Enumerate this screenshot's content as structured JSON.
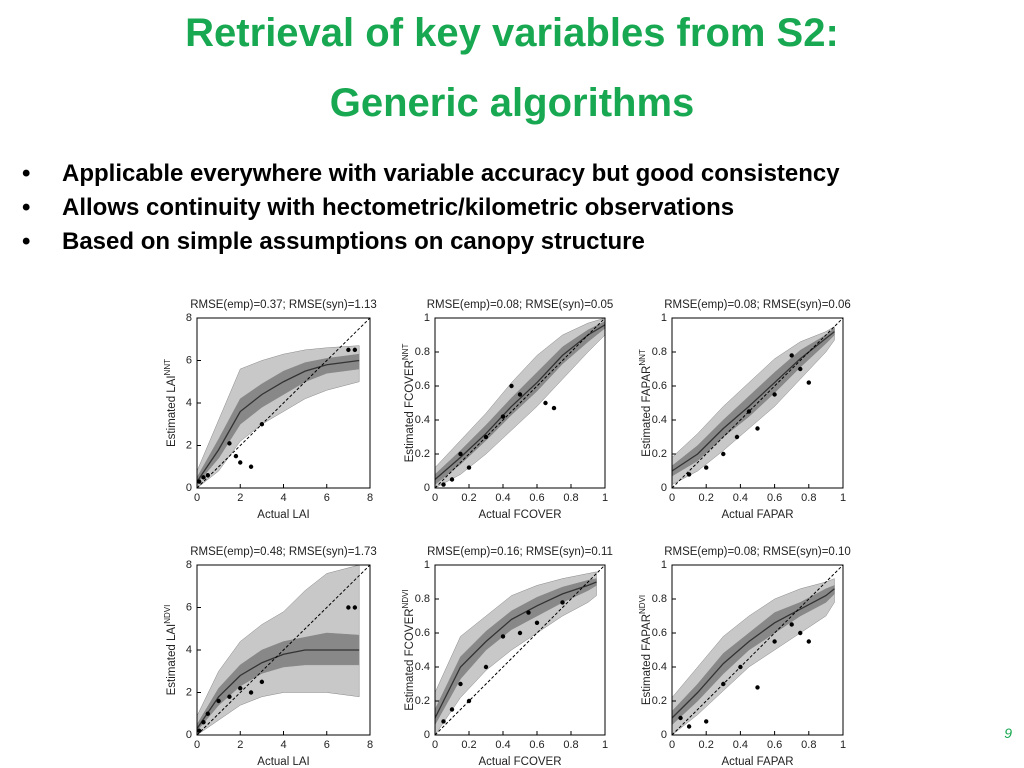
{
  "title": [
    "Retrieval of key variables from S2:",
    "Generic algorithms"
  ],
  "bullets": [
    "Applicable everywhere with variable accuracy but good consistency",
    "Allows continuity with hectometric/kilometric observations",
    "Based on simple assumptions on canopy structure"
  ],
  "page_number": "9",
  "chart_data": [
    {
      "type": "scatter",
      "title": "RMSE(emp)=0.37;  RMSE(syn)=1.13",
      "xlabel": "Actual LAI",
      "ylabel": "Estimated LAI",
      "ylabel_sup": "NNT",
      "xlim": [
        0,
        8
      ],
      "ylim": [
        0,
        8
      ],
      "xticks": [
        0,
        2,
        4,
        6,
        8
      ],
      "yticks": [
        0,
        2,
        4,
        6,
        8
      ],
      "x": [
        0,
        1,
        2,
        3,
        4,
        5,
        6,
        7.5
      ],
      "median": [
        0.3,
        1.8,
        3.6,
        4.4,
        5.0,
        5.5,
        5.8,
        6.0
      ],
      "inner_low": [
        0.2,
        1.4,
        3.0,
        3.8,
        4.4,
        5.0,
        5.4,
        5.6
      ],
      "inner_high": [
        0.5,
        2.3,
        4.2,
        4.9,
        5.5,
        5.9,
        6.1,
        6.3
      ],
      "outer_low": [
        0,
        0.8,
        2.2,
        3.0,
        3.6,
        4.2,
        4.6,
        5.0
      ],
      "outer_high": [
        0.8,
        3.2,
        5.6,
        6.0,
        6.3,
        6.5,
        6.6,
        6.7
      ],
      "points_x": [
        0.1,
        0.3,
        0.5,
        1.5,
        1.8,
        2.0,
        2.5,
        3.0,
        7.0,
        7.3
      ],
      "points_y": [
        0.3,
        0.5,
        0.6,
        2.1,
        1.5,
        1.2,
        1.0,
        3.0,
        6.5,
        6.5
      ]
    },
    {
      "type": "scatter",
      "title": "RMSE(emp)=0.08;  RMSE(syn)=0.05",
      "xlabel": "Actual FCOVER",
      "ylabel": "Estimated FCOVER",
      "ylabel_sup": "NNT",
      "xlim": [
        0,
        1
      ],
      "ylim": [
        0,
        1
      ],
      "xticks": [
        0,
        0.2,
        0.4,
        0.6,
        0.8,
        1
      ],
      "yticks": [
        0,
        0.2,
        0.4,
        0.6,
        0.8,
        1
      ],
      "x": [
        0,
        0.15,
        0.3,
        0.45,
        0.6,
        0.75,
        0.9,
        1
      ],
      "median": [
        0.05,
        0.18,
        0.32,
        0.48,
        0.62,
        0.78,
        0.9,
        0.96
      ],
      "inner_low": [
        0.02,
        0.14,
        0.28,
        0.43,
        0.57,
        0.73,
        0.86,
        0.94
      ],
      "inner_high": [
        0.08,
        0.22,
        0.37,
        0.53,
        0.68,
        0.83,
        0.93,
        0.98
      ],
      "outer_low": [
        0,
        0.08,
        0.2,
        0.34,
        0.48,
        0.64,
        0.8,
        0.9
      ],
      "outer_high": [
        0.12,
        0.28,
        0.44,
        0.62,
        0.78,
        0.9,
        0.97,
        1
      ],
      "points_x": [
        0.05,
        0.1,
        0.15,
        0.2,
        0.3,
        0.4,
        0.45,
        0.5,
        0.65,
        0.7
      ],
      "points_y": [
        0.02,
        0.05,
        0.2,
        0.12,
        0.3,
        0.42,
        0.6,
        0.55,
        0.5,
        0.47
      ]
    },
    {
      "type": "scatter",
      "title": "RMSE(emp)=0.08;  RMSE(syn)=0.06",
      "xlabel": "Actual FAPAR",
      "ylabel": "Estimated FAPAR",
      "ylabel_sup": "NNT",
      "xlim": [
        0,
        1
      ],
      "ylim": [
        0,
        1
      ],
      "xticks": [
        0,
        0.2,
        0.4,
        0.6,
        0.8,
        1
      ],
      "yticks": [
        0,
        0.2,
        0.4,
        0.6,
        0.8,
        1
      ],
      "x": [
        0,
        0.15,
        0.3,
        0.45,
        0.6,
        0.75,
        0.9,
        0.95
      ],
      "median": [
        0.1,
        0.2,
        0.35,
        0.48,
        0.62,
        0.76,
        0.88,
        0.92
      ],
      "inner_low": [
        0.07,
        0.16,
        0.3,
        0.42,
        0.56,
        0.71,
        0.85,
        0.9
      ],
      "inner_high": [
        0.13,
        0.25,
        0.4,
        0.54,
        0.68,
        0.81,
        0.9,
        0.94
      ],
      "outer_low": [
        0.02,
        0.1,
        0.22,
        0.35,
        0.48,
        0.64,
        0.8,
        0.87
      ],
      "outer_high": [
        0.18,
        0.32,
        0.48,
        0.62,
        0.76,
        0.86,
        0.92,
        0.95
      ],
      "points_x": [
        0.1,
        0.2,
        0.3,
        0.38,
        0.45,
        0.5,
        0.6,
        0.7,
        0.75,
        0.8
      ],
      "points_y": [
        0.08,
        0.12,
        0.2,
        0.3,
        0.45,
        0.35,
        0.55,
        0.78,
        0.7,
        0.62
      ]
    },
    {
      "type": "scatter",
      "title": "RMSE(emp)=0.48;  RMSE(syn)=1.73",
      "xlabel": "Actual LAI",
      "ylabel": "Estimated LAI",
      "ylabel_sup": "NDVI",
      "xlim": [
        0,
        8
      ],
      "ylim": [
        0,
        8
      ],
      "xticks": [
        0,
        2,
        4,
        6,
        8
      ],
      "yticks": [
        0,
        2,
        4,
        6,
        8
      ],
      "x": [
        0,
        1,
        2,
        3,
        4,
        5,
        6,
        7.5
      ],
      "median": [
        0.3,
        1.8,
        2.8,
        3.4,
        3.8,
        4.0,
        4.0,
        4.0
      ],
      "inner_low": [
        0.2,
        1.4,
        2.3,
        2.9,
        3.2,
        3.3,
        3.3,
        3.3
      ],
      "inner_high": [
        0.5,
        2.2,
        3.3,
        4.0,
        4.4,
        4.6,
        4.8,
        4.7
      ],
      "outer_low": [
        0,
        0.7,
        1.4,
        1.8,
        2.0,
        2.0,
        2.0,
        1.8
      ],
      "outer_high": [
        0.9,
        3.0,
        4.4,
        5.2,
        5.8,
        6.8,
        7.6,
        8.0
      ],
      "points_x": [
        0.1,
        0.3,
        0.5,
        1.0,
        1.5,
        2.0,
        2.5,
        3.0,
        7.0,
        7.3
      ],
      "points_y": [
        0.2,
        0.6,
        1.0,
        1.6,
        1.8,
        2.2,
        2.0,
        2.5,
        6.0,
        6.0
      ]
    },
    {
      "type": "scatter",
      "title": "RMSE(emp)=0.16;  RMSE(syn)=0.11",
      "xlabel": "Actual FCOVER",
      "ylabel": "Estimated FCOVER",
      "ylabel_sup": "NDVI",
      "xlim": [
        0,
        1
      ],
      "ylim": [
        0,
        1
      ],
      "xticks": [
        0,
        0.2,
        0.4,
        0.6,
        0.8,
        1
      ],
      "yticks": [
        0,
        0.2,
        0.4,
        0.6,
        0.8,
        1
      ],
      "x": [
        0,
        0.15,
        0.3,
        0.45,
        0.6,
        0.75,
        0.9,
        0.95
      ],
      "median": [
        0.1,
        0.4,
        0.55,
        0.68,
        0.76,
        0.83,
        0.88,
        0.9
      ],
      "inner_low": [
        0.06,
        0.33,
        0.5,
        0.62,
        0.7,
        0.78,
        0.85,
        0.88
      ],
      "inner_high": [
        0.15,
        0.46,
        0.61,
        0.73,
        0.81,
        0.87,
        0.91,
        0.92
      ],
      "outer_low": [
        0,
        0.22,
        0.38,
        0.5,
        0.6,
        0.7,
        0.78,
        0.82
      ],
      "outer_high": [
        0.25,
        0.58,
        0.7,
        0.82,
        0.88,
        0.92,
        0.95,
        0.96
      ],
      "points_x": [
        0.05,
        0.1,
        0.15,
        0.2,
        0.3,
        0.4,
        0.5,
        0.55,
        0.6,
        0.75
      ],
      "points_y": [
        0.08,
        0.15,
        0.3,
        0.2,
        0.4,
        0.58,
        0.6,
        0.72,
        0.66,
        0.78
      ]
    },
    {
      "type": "scatter",
      "title": "RMSE(emp)=0.08;  RMSE(syn)=0.10",
      "xlabel": "Actual FAPAR",
      "ylabel": "Estimated FAPAR",
      "ylabel_sup": "NDVI",
      "xlim": [
        0,
        1
      ],
      "ylim": [
        0,
        1
      ],
      "xticks": [
        0,
        0.2,
        0.4,
        0.6,
        0.8,
        1
      ],
      "yticks": [
        0,
        0.2,
        0.4,
        0.6,
        0.8,
        1
      ],
      "x": [
        0,
        0.15,
        0.3,
        0.45,
        0.6,
        0.75,
        0.9,
        0.95
      ],
      "median": [
        0.1,
        0.25,
        0.42,
        0.55,
        0.66,
        0.74,
        0.82,
        0.86
      ],
      "inner_low": [
        0.06,
        0.2,
        0.36,
        0.5,
        0.6,
        0.7,
        0.78,
        0.83
      ],
      "inner_high": [
        0.14,
        0.3,
        0.48,
        0.6,
        0.72,
        0.78,
        0.86,
        0.88
      ],
      "outer_low": [
        0,
        0.12,
        0.26,
        0.4,
        0.5,
        0.6,
        0.7,
        0.78
      ],
      "outer_high": [
        0.22,
        0.4,
        0.58,
        0.7,
        0.8,
        0.86,
        0.9,
        0.92
      ],
      "points_x": [
        0.05,
        0.1,
        0.2,
        0.3,
        0.4,
        0.5,
        0.6,
        0.7,
        0.75,
        0.8
      ],
      "points_y": [
        0.1,
        0.05,
        0.08,
        0.3,
        0.4,
        0.28,
        0.55,
        0.65,
        0.6,
        0.55
      ]
    }
  ]
}
